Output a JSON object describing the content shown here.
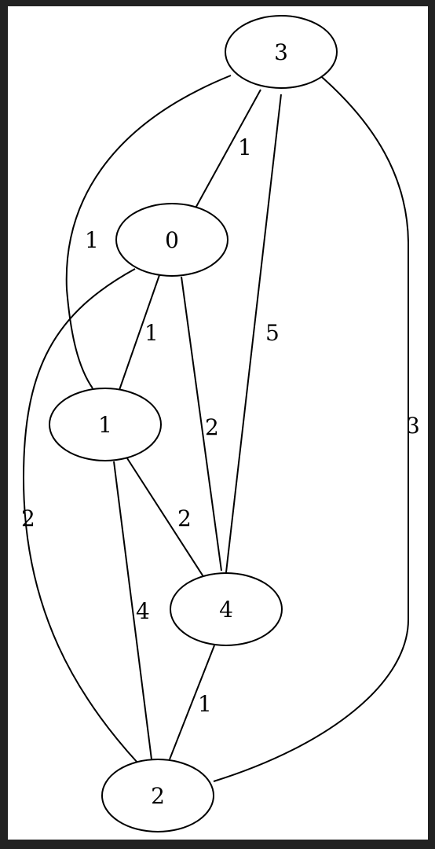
{
  "graph": {
    "nodes": [
      {
        "id": "3",
        "label": "3"
      },
      {
        "id": "0",
        "label": "0"
      },
      {
        "id": "1",
        "label": "1"
      },
      {
        "id": "4",
        "label": "4"
      },
      {
        "id": "2",
        "label": "2"
      }
    ],
    "edges": [
      {
        "from": "3",
        "to": "0",
        "weight": "1"
      },
      {
        "from": "3",
        "to": "1",
        "weight": "1"
      },
      {
        "from": "3",
        "to": "4",
        "weight": "5"
      },
      {
        "from": "3",
        "to": "2",
        "weight": "3"
      },
      {
        "from": "0",
        "to": "1",
        "weight": "1"
      },
      {
        "from": "0",
        "to": "4",
        "weight": "2"
      },
      {
        "from": "0",
        "to": "2",
        "weight": "2"
      },
      {
        "from": "1",
        "to": "4",
        "weight": "2"
      },
      {
        "from": "1",
        "to": "2",
        "weight": "4"
      },
      {
        "from": "4",
        "to": "2",
        "weight": "1"
      }
    ]
  }
}
